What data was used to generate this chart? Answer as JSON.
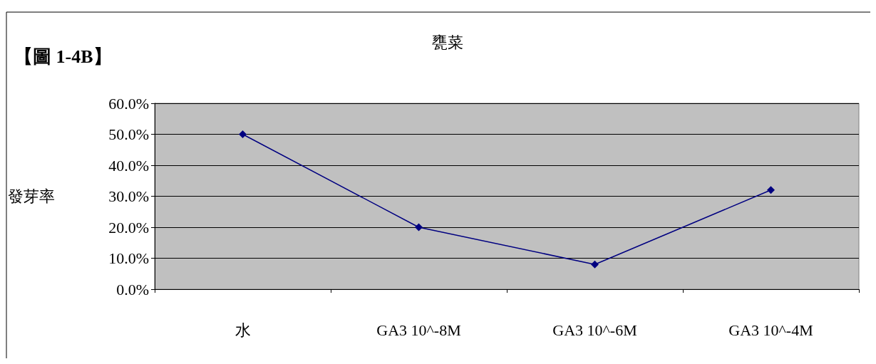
{
  "chart_data": {
    "type": "line",
    "title": "甕菜",
    "ylabel": "發芽率",
    "annotations": [
      "【圖 1-4B】"
    ],
    "categories": [
      "水",
      "GA3 10^-8M",
      "GA3 10^-6M",
      "GA3 10^-4M"
    ],
    "series": [
      {
        "color": "#000080",
        "values": [
          50,
          20,
          8,
          32
        ]
      }
    ],
    "ylim": [
      0,
      60
    ],
    "yticks": [
      {
        "value": 0,
        "label": "0.0%"
      },
      {
        "value": 10,
        "label": "10.0%"
      },
      {
        "value": 20,
        "label": "20.0%"
      },
      {
        "value": 30,
        "label": "30.0%"
      },
      {
        "value": 40,
        "label": "40.0%"
      },
      {
        "value": 50,
        "label": "50.0%"
      },
      {
        "value": 60,
        "label": "60.0%"
      }
    ],
    "grid": "y",
    "marker": "diamond",
    "line_style": "solid"
  }
}
